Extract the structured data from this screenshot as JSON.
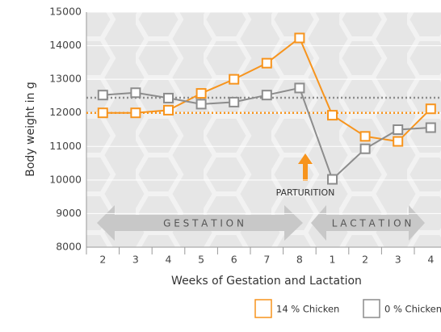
{
  "chart_data": {
    "type": "line",
    "categories": [
      "2",
      "3",
      "4",
      "5",
      "6",
      "7",
      "8",
      "1",
      "2",
      "3",
      "4"
    ],
    "series": [
      {
        "name": "14 % Chicken",
        "color": "#f7941d",
        "values": [
          12000,
          12000,
          12080,
          12580,
          13000,
          13480,
          14230,
          11930,
          11300,
          11150,
          12120
        ]
      },
      {
        "name": "0 % Chicken",
        "color": "#8c8c8c",
        "values": [
          12530,
          12600,
          12440,
          12260,
          12320,
          12530,
          12740,
          10020,
          10930,
          11500,
          11560
        ]
      }
    ],
    "reference_lines": [
      {
        "color": "#f7941d",
        "value": 12000
      },
      {
        "color": "#8c8c8c",
        "value": 12450
      }
    ],
    "ylim": [
      8000,
      15000
    ],
    "yticks": [
      8000,
      9000,
      10000,
      11000,
      12000,
      13000,
      14000,
      15000
    ],
    "grid": true,
    "ylabel": "Body weight in g",
    "xlabel": "Weeks of Gestation and Lactation",
    "annotations": {
      "parturition": "PARTURITION",
      "gestation": "G E S T A T I O N",
      "lactation": "L A C T A T I O N"
    }
  }
}
